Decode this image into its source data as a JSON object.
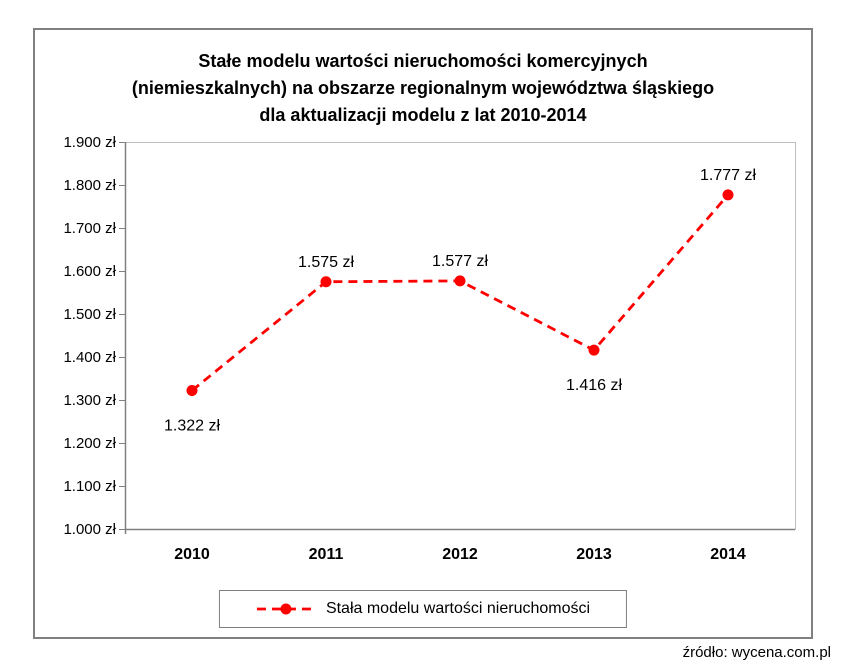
{
  "chart_data": {
    "type": "line",
    "title_lines": [
      "Stałe modelu wartości nieruchomości komercyjnych",
      "(niemieszkalnych) na obszarze regionalnym województwa śląskiego",
      "dla aktualizacji modelu z lat 2010-2014"
    ],
    "categories": [
      "2010",
      "2011",
      "2012",
      "2013",
      "2014"
    ],
    "series": [
      {
        "name": "Stała modelu wartości nieruchomości",
        "values": [
          1322,
          1575,
          1577,
          1416,
          1777
        ],
        "point_labels": [
          "1.322 zł",
          "1.575 zł",
          "1.577 zł",
          "1.416 zł",
          "1.777 zł"
        ],
        "label_positions": [
          "below",
          "above",
          "above",
          "below",
          "above"
        ],
        "color": "#FF0000",
        "line_style": "dashed",
        "marker": "circle"
      }
    ],
    "y_axis": {
      "min": 1000,
      "max": 1900,
      "step": 100,
      "tick_labels": [
        "1.000 zł",
        "1.100 zł",
        "1.200 zł",
        "1.300 zł",
        "1.400 zł",
        "1.500 zł",
        "1.600 zł",
        "1.700 zł",
        "1.800 zł",
        "1.900 zł"
      ]
    },
    "grid": false,
    "legend": {
      "position": "bottom",
      "label": "Stała modelu wartości nieruchomości"
    },
    "colors": {
      "axis": "#808080",
      "plot_border": "#BFBFBF",
      "legend_border": "#7F7F7F",
      "outer_border": "#808080"
    }
  },
  "footer": {
    "source": "źródło: wycena.com.pl"
  }
}
